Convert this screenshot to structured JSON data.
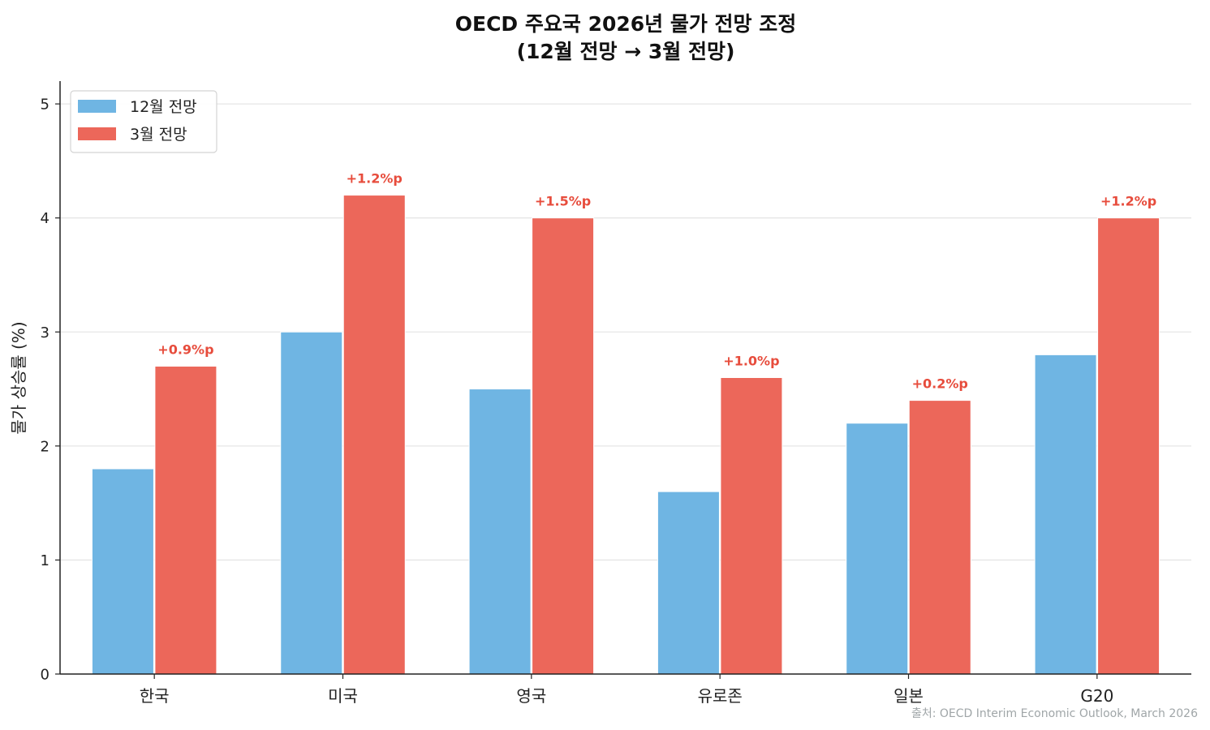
{
  "chart_data": {
    "type": "bar",
    "title_line1": "OECD 주요국 2026년 물가 전망 조정",
    "title_line2": "(12월 전망 → 3월 전망)",
    "xlabel": "",
    "ylabel": "물가 상승률 (%)",
    "categories": [
      "한국",
      "미국",
      "영국",
      "유로존",
      "일본",
      "G20"
    ],
    "series": [
      {
        "name": "12월 전망",
        "values": [
          1.8,
          3.0,
          2.5,
          1.6,
          2.2,
          2.8
        ]
      },
      {
        "name": "3월 전망",
        "values": [
          2.7,
          4.2,
          4.0,
          2.6,
          2.4,
          4.0
        ]
      }
    ],
    "delta_labels": [
      "+0.9%p",
      "+1.2%p",
      "+1.5%p",
      "+1.0%p",
      "+0.2%p",
      "+1.2%p"
    ],
    "ylim": [
      0,
      5.2
    ],
    "yticks": [
      "0",
      "1",
      "2",
      "3",
      "4",
      "5"
    ],
    "grid": true,
    "legend_position": "top-left",
    "colors": {
      "series_1": "#6fb5e3",
      "series_2": "#ec675a",
      "delta": "#e74c3c"
    },
    "source": "출처: OECD Interim Economic Outlook, March 2026"
  }
}
